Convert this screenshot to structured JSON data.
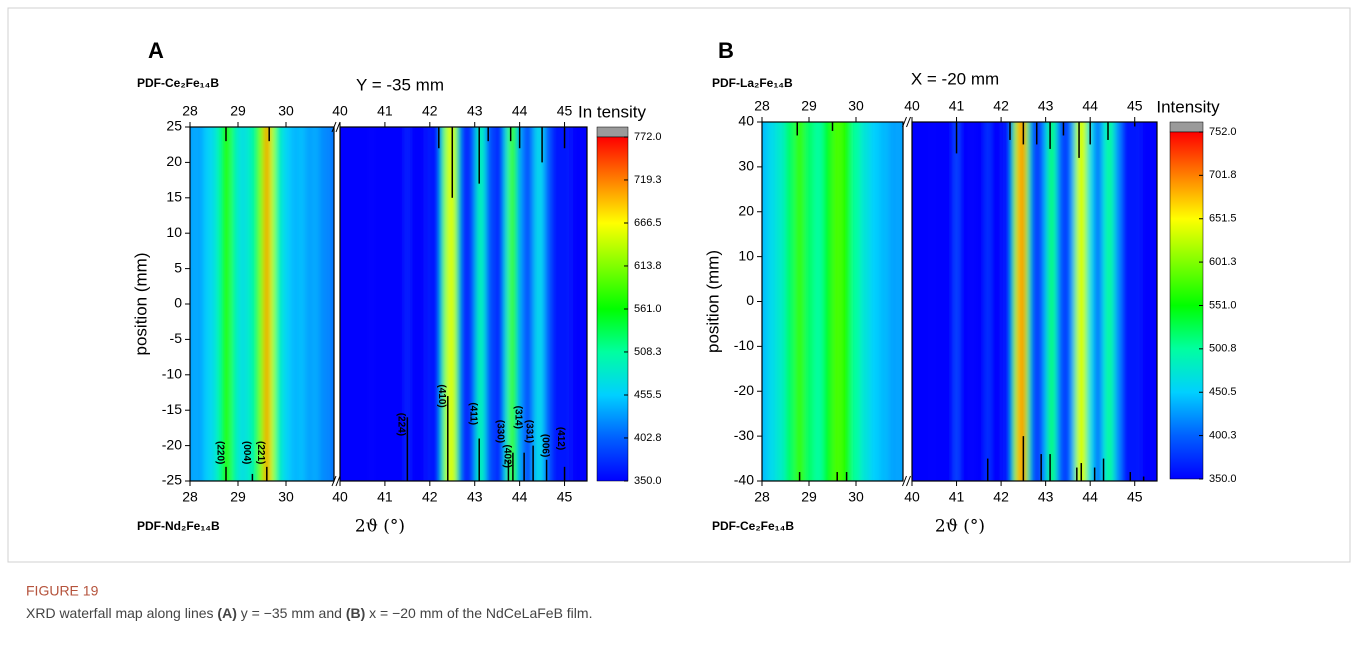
{
  "chart_data": [
    {
      "type": "heatmap",
      "panel": "A",
      "title": "Y = -35 mm",
      "ylabel": "position (mm)",
      "xlabel": "2ϑ (°)",
      "top_phase": "PDF-Ce₂Fe₁₄B",
      "bottom_phase": "PDF-Nd₂Fe₁₄B",
      "colorbar_label": "In tensity",
      "segments": [
        {
          "xlim": [
            28,
            31
          ],
          "xticks": [
            28,
            29,
            30
          ]
        },
        {
          "xlim": [
            40,
            45.5
          ],
          "xticks": [
            40,
            41,
            42,
            43,
            44,
            45
          ]
        }
      ],
      "ylim": [
        -25,
        25
      ],
      "yticks": [
        -25,
        -20,
        -15,
        -10,
        -5,
        0,
        5,
        10,
        15,
        20,
        25
      ],
      "clim": [
        350,
        772
      ],
      "cticks": [
        {
          "value": 350,
          "label": "350.0"
        },
        {
          "value": 402.8,
          "label": "402.8"
        },
        {
          "value": 455.5,
          "label": "455.5"
        },
        {
          "value": 508.3,
          "label": "508.3"
        },
        {
          "value": 561,
          "label": "561.0"
        },
        {
          "value": 613.8,
          "label": "613.8"
        },
        {
          "value": 666.5,
          "label": "666.5"
        },
        {
          "value": 719.3,
          "label": "719.3"
        },
        {
          "value": 772,
          "label": "772.0"
        }
      ],
      "colormap": [
        "#0000ff",
        "#0060ff",
        "#00d0ff",
        "#00ffa0",
        "#00ff00",
        "#80ff00",
        "#ffff00",
        "#ff8000",
        "#ff0000"
      ],
      "profile": {
        "x": [
          28.0,
          28.1,
          28.2,
          28.3,
          28.4,
          28.5,
          28.6,
          28.7,
          28.8,
          28.9,
          29.0,
          29.1,
          29.2,
          29.3,
          29.4,
          29.5,
          29.6,
          29.7,
          29.8,
          29.9,
          30.0,
          30.1,
          30.2,
          30.3,
          30.4,
          30.5,
          30.6,
          30.7,
          30.8,
          30.9,
          31.0,
          40,
          41.4,
          41.5,
          41.6,
          42.2,
          42.3,
          42.4,
          42.5,
          42.6,
          42.7,
          42.9,
          43.0,
          43.1,
          43.2,
          43.3,
          43.6,
          43.7,
          43.8,
          43.9,
          44.0,
          44.2,
          44.3,
          44.4,
          44.5,
          44.6,
          44.8,
          45.5
        ],
        "values": [
          430,
          440,
          430,
          450,
          460,
          470,
          500,
          560,
          580,
          520,
          480,
          470,
          480,
          500,
          540,
          620,
          720,
          640,
          520,
          480,
          460,
          450,
          440,
          450,
          440,
          430,
          440,
          430,
          420,
          420,
          410,
          350,
          350,
          370,
          350,
          360,
          520,
          640,
          660,
          540,
          380,
          360,
          420,
          510,
          480,
          390,
          370,
          480,
          590,
          540,
          430,
          380,
          430,
          470,
          460,
          400,
          360,
          350
        ]
      },
      "top_sticks": {
        "x": [
          28.75,
          29.65,
          42.2,
          42.5,
          43.1,
          43.3,
          43.8,
          44.0,
          44.5,
          45.0
        ],
        "values": [
          2,
          2,
          3,
          10,
          8,
          2,
          2,
          3,
          5,
          3
        ]
      },
      "bottom_sticks": {
        "x": [
          28.75,
          29.3,
          29.6,
          41.5,
          42.4,
          43.1,
          43.75,
          43.85,
          44.1,
          44.3,
          44.6,
          45.0
        ],
        "values": [
          2,
          1,
          2,
          9,
          12,
          6,
          3,
          4,
          4,
          5,
          3,
          2
        ]
      },
      "annotations": [
        {
          "text": "(220)",
          "x": 28.75,
          "y": -21
        },
        {
          "text": "(004)",
          "x": 29.3,
          "y": -21
        },
        {
          "text": "(221)",
          "x": 29.6,
          "y": -21
        },
        {
          "text": "(224)",
          "x": 41.5,
          "y": -17
        },
        {
          "text": "(410)",
          "x": 42.4,
          "y": -13
        },
        {
          "text": "(411)",
          "x": 43.1,
          "y": -15.5
        },
        {
          "text": "(330)",
          "x": 43.7,
          "y": -18
        },
        {
          "text": "(402)",
          "x": 43.85,
          "y": -21.5
        },
        {
          "text": "(314)",
          "x": 44.1,
          "y": -16
        },
        {
          "text": "(331)",
          "x": 44.35,
          "y": -18
        },
        {
          "text": "(006)",
          "x": 44.7,
          "y": -20
        },
        {
          "text": "(412)",
          "x": 45.05,
          "y": -19
        }
      ]
    },
    {
      "type": "heatmap",
      "panel": "B",
      "title": "X = -20 mm",
      "ylabel": "position (mm)",
      "xlabel": "2ϑ (°)",
      "top_phase": "PDF-La₂Fe₁₄B",
      "bottom_phase": "PDF-Ce₂Fe₁₄B",
      "colorbar_label": "Intensity",
      "segments": [
        {
          "xlim": [
            28,
            31
          ],
          "xticks": [
            28,
            29,
            30
          ]
        },
        {
          "xlim": [
            40,
            45.5
          ],
          "xticks": [
            40,
            41,
            42,
            43,
            44,
            45
          ]
        }
      ],
      "ylim": [
        -40,
        40
      ],
      "yticks": [
        -40,
        -30,
        -20,
        -10,
        0,
        10,
        20,
        30,
        40
      ],
      "clim": [
        350,
        752
      ],
      "cticks": [
        {
          "value": 350,
          "label": "350.0"
        },
        {
          "value": 400.3,
          "label": "400.3"
        },
        {
          "value": 450.5,
          "label": "450.5"
        },
        {
          "value": 500.8,
          "label": "500.8"
        },
        {
          "value": 551,
          "label": "551.0"
        },
        {
          "value": 601.3,
          "label": "601.3"
        },
        {
          "value": 651.5,
          "label": "651.5"
        },
        {
          "value": 701.8,
          "label": "701.8"
        },
        {
          "value": 752,
          "label": "752.0"
        }
      ],
      "colormap": [
        "#0000ff",
        "#0060ff",
        "#00d0ff",
        "#00ffa0",
        "#00ff00",
        "#80ff00",
        "#ffff00",
        "#ff8000",
        "#ff0000"
      ],
      "profile": {
        "x": [
          28.0,
          28.2,
          28.4,
          28.6,
          28.8,
          29.0,
          29.2,
          29.4,
          29.6,
          29.8,
          30.0,
          30.2,
          30.4,
          30.6,
          30.8,
          31.0,
          40,
          40.9,
          41.0,
          41.1,
          41.6,
          41.7,
          41.8,
          42.2,
          42.3,
          42.4,
          42.5,
          42.6,
          42.7,
          42.9,
          43.0,
          43.1,
          43.2,
          43.3,
          43.5,
          43.6,
          43.7,
          43.8,
          43.9,
          44.0,
          44.2,
          44.3,
          44.4,
          44.5,
          44.6,
          44.8,
          45.5
        ],
        "values": [
          440,
          460,
          480,
          520,
          570,
          520,
          500,
          540,
          580,
          560,
          500,
          470,
          450,
          440,
          430,
          430,
          350,
          350,
          390,
          350,
          350,
          380,
          350,
          360,
          540,
          680,
          700,
          560,
          390,
          380,
          440,
          530,
          500,
          400,
          370,
          430,
          600,
          650,
          600,
          460,
          400,
          460,
          510,
          490,
          420,
          360,
          350
        ]
      },
      "top_sticks": {
        "x": [
          28.75,
          29.5,
          41.0,
          42.2,
          42.5,
          42.8,
          43.1,
          43.4,
          43.75,
          44.0,
          44.4,
          45.0
        ],
        "values": [
          3,
          2,
          7,
          4,
          5,
          5,
          6,
          3,
          8,
          5,
          4,
          1
        ]
      },
      "bottom_sticks": {
        "x": [
          28.8,
          29.6,
          29.8,
          41.7,
          42.5,
          42.9,
          43.1,
          43.7,
          43.8,
          44.1,
          44.3,
          44.9,
          45.2
        ],
        "values": [
          2,
          2,
          2,
          5,
          10,
          6,
          6,
          3,
          4,
          3,
          5,
          2,
          1
        ]
      },
      "annotations": []
    }
  ],
  "caption": {
    "label": "FIGURE 19",
    "parts": [
      "XRD waterfall map along lines ",
      "(A)",
      " y = −35 mm and ",
      "(B)",
      " x = −20 mm of the NdCeLaFeB film."
    ]
  }
}
